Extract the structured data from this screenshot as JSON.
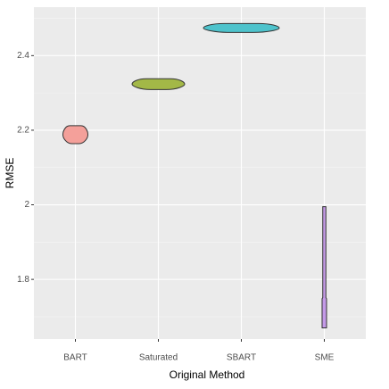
{
  "chart_data": {
    "type": "violin",
    "x_label": "Original Method",
    "y_label": "RMSE",
    "categories": [
      "BART",
      "Saturated",
      "SBART",
      "SME"
    ],
    "ymin": [
      2.164,
      2.309,
      2.462,
      1.67
    ],
    "ymax": [
      2.212,
      2.338,
      2.486,
      1.995
    ],
    "colors": [
      "#f4a09a",
      "#a3b847",
      "#4ec3cc",
      "#c49ae8"
    ],
    "ylim": [
      1.64,
      2.53
    ],
    "yticks": [
      1.8,
      2.0,
      2.2,
      2.4
    ],
    "grid": true
  }
}
